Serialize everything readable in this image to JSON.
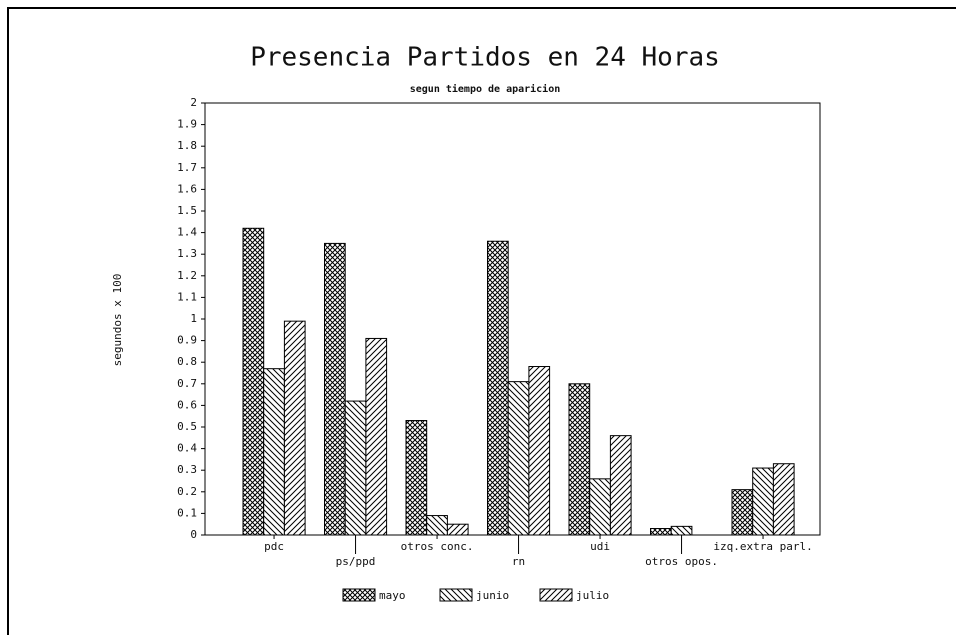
{
  "chart_data": {
    "type": "bar",
    "title": "Presencia Partidos en 24 Horas",
    "subtitle": "segun tiempo de aparicion",
    "y_label": "segundos x 100",
    "categories": [
      "pdc",
      "ps/ppd",
      "otros conc.",
      "rn",
      "udi",
      "otros opos.",
      "izq.extra parl."
    ],
    "series": [
      {
        "name": "mayo",
        "color": "#000000",
        "values": [
          1.42,
          1.35,
          0.53,
          1.36,
          0.7,
          0.03,
          0.21
        ]
      },
      {
        "name": "junio",
        "color": "#000000",
        "values": [
          0.77,
          0.62,
          0.09,
          0.71,
          0.26,
          0.04,
          0.31
        ]
      },
      {
        "name": "julio",
        "color": "#000000",
        "values": [
          0.99,
          0.91,
          0.05,
          0.78,
          0.46,
          0,
          0.33
        ]
      }
    ],
    "ylim": [
      0,
      2
    ],
    "yticks": [
      0,
      0.1,
      0.2,
      0.3,
      0.4,
      0.5,
      0.6,
      0.7,
      0.8,
      0.9,
      1,
      1.1,
      1.2,
      1.3,
      1.4,
      1.5,
      1.6,
      1.7,
      1.8,
      1.9,
      2
    ],
    "legend": "bottom"
  }
}
